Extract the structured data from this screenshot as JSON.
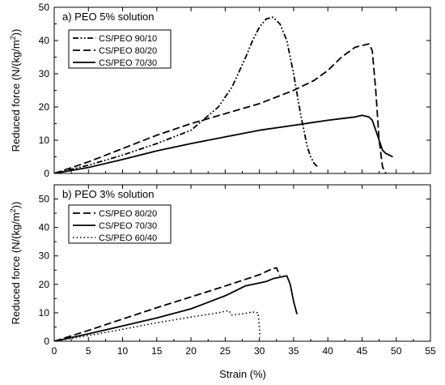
{
  "chart_data": [
    {
      "type": "line",
      "title": "a) PEO 5% solution",
      "xlabel": "",
      "ylabel": "Reduced force (N/(kg/m²))",
      "ylabel_base": "Reduced force (N/(kg/m",
      "ylabel_sup": "2",
      "ylabel_end": "))",
      "xlim": [
        0,
        55
      ],
      "ylim": [
        0,
        50
      ],
      "xticks": [
        0,
        5,
        10,
        15,
        20,
        25,
        30,
        35,
        40,
        45,
        50,
        55
      ],
      "yticks": [
        0,
        10,
        20,
        30,
        40,
        50
      ],
      "legend_position": "top-left",
      "series": [
        {
          "name": "CS/PEO 90/10",
          "dash": "dashdotdot",
          "x": [
            0,
            5,
            10,
            15,
            20,
            24,
            26,
            28,
            29,
            30,
            31,
            32,
            33,
            34,
            35,
            36,
            37,
            37.5,
            38,
            38.5
          ],
          "y": [
            0,
            2.5,
            5.5,
            9,
            13,
            20,
            26,
            35,
            40,
            44,
            46.5,
            47,
            45,
            40,
            30,
            18,
            8,
            5,
            3,
            2
          ]
        },
        {
          "name": "CS/PEO 80/20",
          "dash": "dash",
          "x": [
            0,
            5,
            10,
            15,
            20,
            25,
            30,
            35,
            38,
            40,
            42,
            44,
            45,
            46,
            46.5,
            47,
            47.5,
            48,
            48.5
          ],
          "y": [
            0,
            3.5,
            7.5,
            11.5,
            15,
            18,
            21,
            25,
            28,
            31,
            35,
            38,
            38.5,
            39,
            37,
            25,
            10,
            2,
            0
          ]
        },
        {
          "name": "CS/PEO 70/30",
          "dash": "solid",
          "x": [
            0,
            5,
            10,
            15,
            20,
            25,
            30,
            35,
            40,
            42,
            44,
            45,
            46,
            46.5,
            47,
            47.5,
            48,
            48.5,
            49,
            49.5
          ],
          "y": [
            0,
            1.8,
            4.2,
            6.8,
            9,
            11,
            13,
            14.5,
            16,
            16.5,
            17,
            17.5,
            17,
            16,
            13,
            10,
            7,
            6,
            5.5,
            5
          ]
        }
      ]
    },
    {
      "type": "line",
      "title": "b) PEO 3% solution",
      "xlabel": "Strain (%)",
      "ylabel": "Reduced force (N/(kg/m²))",
      "ylabel_base": "Reduced force (N/(kg/m",
      "ylabel_sup": "2",
      "ylabel_end": "))",
      "xlim": [
        0,
        55
      ],
      "ylim": [
        0,
        55
      ],
      "xticks": [
        0,
        5,
        10,
        15,
        20,
        25,
        30,
        35,
        40,
        45,
        50,
        55
      ],
      "yticks": [
        0,
        10,
        20,
        30,
        40,
        50
      ],
      "legend_position": "top-left",
      "series": [
        {
          "name": "CS/PEO 80/20",
          "dash": "dash",
          "x": [
            0,
            5,
            10,
            15,
            20,
            25,
            30,
            32,
            32.5,
            33
          ],
          "y": [
            0,
            3.8,
            7.8,
            11.8,
            15.6,
            19.4,
            23.4,
            25.6,
            25.8,
            23
          ]
        },
        {
          "name": "CS/PEO 70/30",
          "dash": "solid",
          "x": [
            0,
            5,
            10,
            15,
            20,
            25,
            28,
            30,
            31,
            32,
            33,
            34,
            34.5,
            35,
            35.5
          ],
          "y": [
            0,
            2.6,
            5.4,
            8.2,
            11.4,
            16,
            19.5,
            20.5,
            21,
            22,
            22.5,
            23,
            20,
            14,
            9.5
          ]
        },
        {
          "name": "CS/PEO 60/40",
          "dash": "dot",
          "x": [
            0,
            5,
            10,
            15,
            20,
            24,
            25.5,
            26,
            27,
            28,
            29,
            29.8,
            30,
            30.1
          ],
          "y": [
            0,
            2,
            4.2,
            6.5,
            8.5,
            10,
            10.8,
            9.2,
            9.5,
            9.8,
            10.3,
            10,
            5,
            1.5
          ]
        }
      ]
    }
  ]
}
